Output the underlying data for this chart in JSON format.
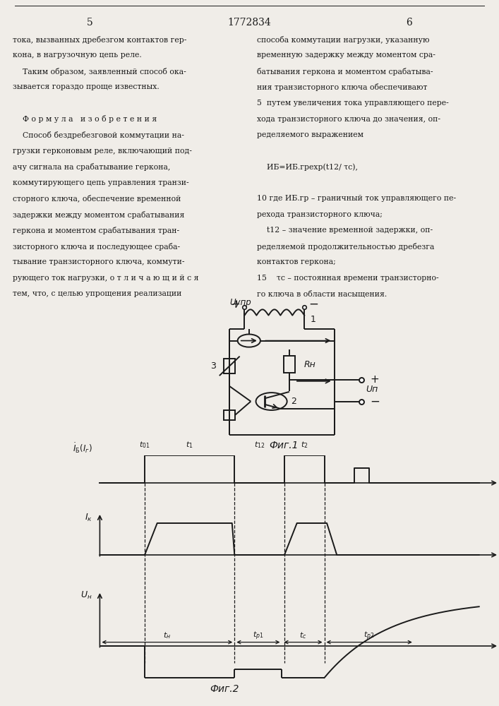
{
  "page_number_left": "5",
  "page_number_center": "1772834",
  "page_number_right": "6",
  "bg_color": "#f0ede8",
  "text_color": "#1a1a1a",
  "fig1_caption": "Фиг.1",
  "fig2_caption": "Фиг.2",
  "left_col_lines": [
    "тока, вызванных дребезгом контактов гер-",
    "кона, в нагрузочную цепь реле.",
    "    Таким образом, заявленный способ ока-",
    "зывается гораздо проще известных.",
    "",
    "    Ф о р м у л а   и з о б р е т е н и я",
    "    Способ бездребезговой коммутации на-",
    "грузки герконовым реле, включающий под-",
    "ачу сигнала на срабатывание геркона,",
    "коммутирующего цепь управления транзи-",
    "сторного ключа, обеспечение временной",
    "задержки между моментом срабатывания",
    "геркона и моментом срабатывания тран-",
    "зисторного ключа и последующее сраба-",
    "тывание транзисторного ключа, коммути-",
    "рующего ток нагрузки, о т л и ч а ю щ и й с я",
    "тем, что, с целью упрощения реализации"
  ],
  "right_col_lines": [
    "способа коммутации нагрузки, указанную",
    "временную задержку между моментом сра-",
    "батывания геркона и моментом срабатыва-",
    "ния транзисторного ключа обеспечивают",
    "5  путем увеличения тока управляющего пере-",
    "хода транзисторного ключа до значения, оп-",
    "ределяемого выражением",
    "",
    "    ИБ=ИБ.грexp(t12/ τс),",
    "",
    "10 где ИБ.гр – граничный ток управляющего пе-",
    "рехода транзисторного ключа;",
    "    t12 – значение временной задержки, оп-",
    "ределяемой продолжительностью дребезга",
    "контактов геркона;",
    "15    τс – постоянная времени транзисторно-",
    "го ключа в области насыщения."
  ]
}
